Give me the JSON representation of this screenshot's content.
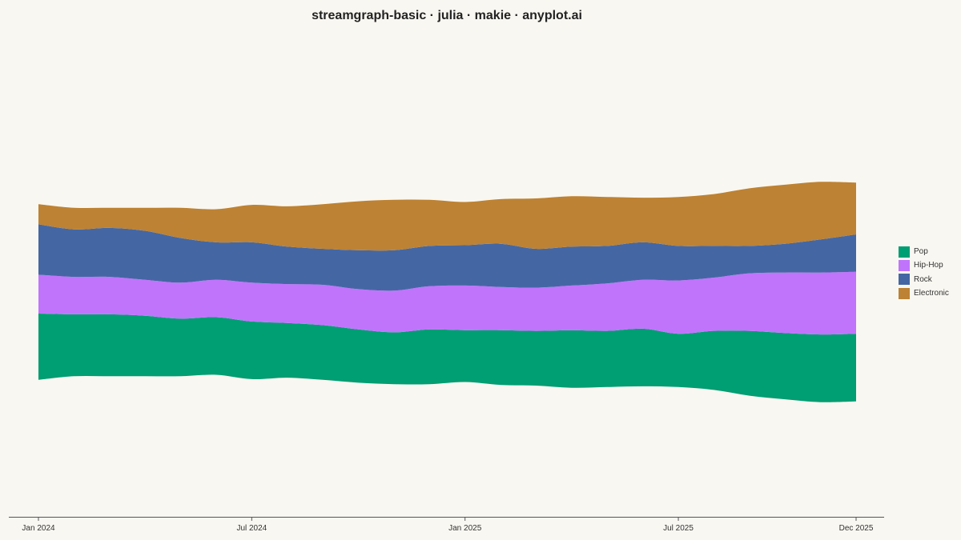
{
  "title": "streamgraph-basic · julia · makie · anyplot.ai",
  "chart_data": {
    "type": "area",
    "subtype": "streamgraph",
    "title": "streamgraph-basic · julia · makie · anyplot.ai",
    "xlabel": "",
    "ylabel": "",
    "x": [
      "2024-01",
      "2024-02",
      "2024-03",
      "2024-04",
      "2024-05",
      "2024-06",
      "2024-07",
      "2024-08",
      "2024-09",
      "2024-10",
      "2024-11",
      "2024-12",
      "2025-01",
      "2025-02",
      "2025-03",
      "2025-04",
      "2025-05",
      "2025-06",
      "2025-07",
      "2025-08",
      "2025-09",
      "2025-10",
      "2025-11",
      "2025-12"
    ],
    "x_ticks": [
      "Jan 2024",
      "Jul 2024",
      "Jan 2025",
      "Jul 2025",
      "Dec 2025"
    ],
    "x_tick_positions": [
      "2024-01",
      "2024-07",
      "2025-01",
      "2025-07",
      "2025-12"
    ],
    "y_visible": false,
    "grid": false,
    "legend_position": "right",
    "series": [
      {
        "name": "Pop",
        "color": "#009e73",
        "values": [
          46,
          43,
          43,
          42,
          40,
          40,
          40,
          38,
          38,
          37,
          36,
          38,
          36,
          38,
          38,
          40,
          39,
          40,
          37,
          41,
          45,
          46,
          47,
          47
        ]
      },
      {
        "name": "Hip-Hop",
        "color": "#c074fc",
        "values": [
          27,
          26,
          26,
          25,
          25,
          26,
          27,
          27,
          28,
          28,
          29,
          30,
          31,
          30,
          30,
          31,
          33,
          34,
          37,
          37,
          40,
          42,
          43,
          43
        ]
      },
      {
        "name": "Rock",
        "color": "#4467a4",
        "values": [
          35,
          33,
          34,
          34,
          31,
          26,
          28,
          26,
          25,
          27,
          28,
          28,
          28,
          30,
          27,
          27,
          26,
          26,
          24,
          22,
          19,
          20,
          23,
          26
        ]
      },
      {
        "name": "Electronic",
        "color": "#bd8233",
        "values": [
          14,
          15,
          14,
          16,
          21,
          23,
          26,
          28,
          31,
          34,
          35,
          32,
          30,
          31,
          35,
          35,
          34,
          31,
          34,
          36,
          40,
          41,
          40,
          36
        ]
      }
    ]
  }
}
